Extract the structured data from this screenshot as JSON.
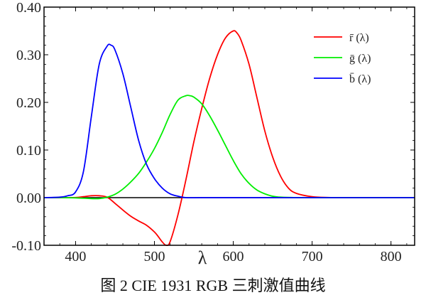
{
  "caption": "图 2 CIE 1931 RGB 三刺激值曲线",
  "chart_data": {
    "type": "line",
    "title": "",
    "xlabel": "λ",
    "ylabel": "",
    "xlim": [
      360,
      830
    ],
    "ylim": [
      -0.1,
      0.4
    ],
    "xticks": [
      400,
      500,
      600,
      700,
      800
    ],
    "yticks": [
      -0.1,
      0.0,
      0.1,
      0.2,
      0.3,
      0.4
    ],
    "ytick_labels": [
      "-0.10",
      "0.00",
      "0.10",
      "0.20",
      "0.30",
      "0.40"
    ],
    "grid": false,
    "zero_line": true,
    "legend": "top-right",
    "series": [
      {
        "name": "r̄ (λ)",
        "color": "#ff0000",
        "x": [
          360,
          380,
          400,
          410,
          420,
          430,
          440,
          450,
          460,
          470,
          480,
          490,
          500,
          505,
          510,
          515,
          520,
          530,
          540,
          550,
          560,
          570,
          580,
          590,
          600,
          605,
          610,
          620,
          630,
          640,
          650,
          660,
          670,
          680,
          700,
          720,
          750,
          780,
          830
        ],
        "y": [
          0.0,
          0.0,
          0.0003,
          0.002,
          0.004,
          0.004,
          0.001,
          -0.012,
          -0.026,
          -0.039,
          -0.049,
          -0.058,
          -0.072,
          -0.082,
          -0.093,
          -0.1,
          -0.092,
          -0.035,
          0.038,
          0.117,
          0.187,
          0.25,
          0.3,
          0.335,
          0.35,
          0.345,
          0.33,
          0.28,
          0.21,
          0.14,
          0.085,
          0.045,
          0.02,
          0.009,
          0.002,
          0.0003,
          0.0,
          0.0,
          0.0
        ]
      },
      {
        "name": "ḡ (λ)",
        "color": "#00ee00",
        "x": [
          360,
          380,
          400,
          420,
          430,
          440,
          450,
          460,
          470,
          480,
          490,
          500,
          510,
          520,
          530,
          540,
          545,
          550,
          560,
          570,
          580,
          590,
          600,
          610,
          620,
          630,
          640,
          650,
          660,
          680,
          700,
          750,
          830
        ],
        "y": [
          0.0,
          0.0,
          -0.0005,
          -0.002,
          -0.002,
          0.001,
          0.007,
          0.018,
          0.033,
          0.051,
          0.075,
          0.103,
          0.137,
          0.175,
          0.205,
          0.214,
          0.214,
          0.211,
          0.197,
          0.172,
          0.142,
          0.11,
          0.078,
          0.05,
          0.03,
          0.016,
          0.008,
          0.003,
          0.001,
          0.0,
          0.0,
          0.0,
          0.0
        ]
      },
      {
        "name": "b̄ (λ)",
        "color": "#0000ff",
        "x": [
          360,
          380,
          390,
          400,
          410,
          420,
          430,
          440,
          445,
          450,
          460,
          470,
          480,
          490,
          500,
          510,
          520,
          530,
          540,
          560,
          600,
          700,
          830
        ],
        "y": [
          0.0,
          0.001,
          0.004,
          0.012,
          0.055,
          0.17,
          0.28,
          0.318,
          0.32,
          0.31,
          0.26,
          0.19,
          0.12,
          0.07,
          0.04,
          0.02,
          0.008,
          0.003,
          0.0,
          0.0,
          0.0,
          0.0,
          0.0
        ]
      }
    ]
  }
}
